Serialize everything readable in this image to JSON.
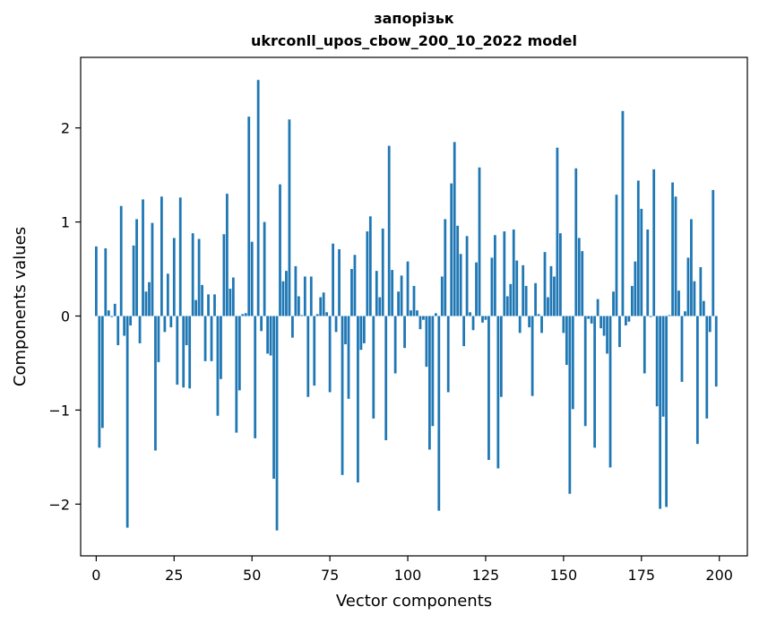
{
  "chart_data": {
    "type": "bar",
    "title_line1": "запорізьк",
    "title_line2": "ukrconll_upos_cbow_200_10_2022 model",
    "xlabel": "Vector components",
    "ylabel": "Components values",
    "xlim": [
      -5,
      209
    ],
    "ylim": [
      -2.55,
      2.75
    ],
    "x_ticks": [
      0,
      25,
      50,
      75,
      100,
      125,
      150,
      175,
      200
    ],
    "y_ticks": [
      -2,
      -1,
      0,
      1,
      2
    ],
    "y_tick_labels": [
      "−2",
      "−1",
      "0",
      "1",
      "2"
    ],
    "bar_color": "#1f77b4",
    "grid": false,
    "values": [
      0.74,
      -1.4,
      -1.19,
      0.72,
      0.06,
      -0.01,
      0.13,
      -0.31,
      1.17,
      -0.21,
      -2.25,
      -0.1,
      0.75,
      1.03,
      -0.29,
      1.24,
      0.26,
      0.36,
      0.99,
      -1.43,
      -0.49,
      1.27,
      -0.17,
      0.45,
      -0.12,
      0.83,
      -0.73,
      1.26,
      -0.76,
      -0.31,
      -0.77,
      0.88,
      0.17,
      0.82,
      0.33,
      -0.48,
      0.23,
      -0.48,
      0.23,
      -1.06,
      -0.67,
      0.87,
      1.3,
      0.29,
      0.41,
      -1.24,
      -0.79,
      0.02,
      0.03,
      2.12,
      0.79,
      -1.3,
      2.51,
      -0.16,
      1.0,
      -0.4,
      -0.42,
      -1.73,
      -2.28,
      1.4,
      0.37,
      0.48,
      2.09,
      -0.23,
      0.53,
      0.21,
      0.01,
      0.42,
      -0.86,
      0.42,
      -0.74,
      0.02,
      0.2,
      0.25,
      0.04,
      -0.81,
      0.77,
      -0.17,
      0.71,
      -1.69,
      -0.3,
      -0.88,
      0.5,
      0.65,
      -1.77,
      -0.36,
      -0.29,
      0.9,
      1.06,
      -1.09,
      0.48,
      0.2,
      0.93,
      -1.32,
      1.81,
      0.49,
      -0.61,
      0.26,
      0.43,
      -0.34,
      0.58,
      0.06,
      0.32,
      0.06,
      -0.14,
      -0.04,
      -0.54,
      -1.42,
      -1.17,
      0.03,
      -2.07,
      0.42,
      1.03,
      -0.81,
      1.41,
      1.85,
      0.96,
      0.66,
      -0.32,
      0.85,
      0.04,
      -0.15,
      0.57,
      1.58,
      -0.07,
      -0.04,
      -1.53,
      0.62,
      0.86,
      -1.62,
      -0.86,
      0.9,
      0.21,
      0.34,
      0.92,
      0.59,
      -0.18,
      0.54,
      0.32,
      -0.12,
      -0.85,
      0.35,
      0.02,
      -0.18,
      0.68,
      0.2,
      0.53,
      0.42,
      1.79,
      0.88,
      -0.18,
      -0.52,
      -1.89,
      -0.99,
      1.57,
      0.83,
      0.69,
      -1.17,
      -0.03,
      -0.08,
      -1.4,
      0.18,
      -0.13,
      -0.21,
      -0.4,
      -1.61,
      0.26,
      1.29,
      -0.33,
      2.18,
      -0.1,
      -0.06,
      0.32,
      0.58,
      1.44,
      1.14,
      -0.61,
      0.92,
      -0.01,
      1.56,
      -0.96,
      -2.05,
      -1.07,
      -2.03,
      0.01,
      1.42,
      1.27,
      0.27,
      -0.7,
      0.05,
      0.62,
      1.03,
      0.37,
      -1.36,
      0.52,
      0.16,
      -1.09,
      -0.17,
      1.34,
      -0.75
    ]
  }
}
